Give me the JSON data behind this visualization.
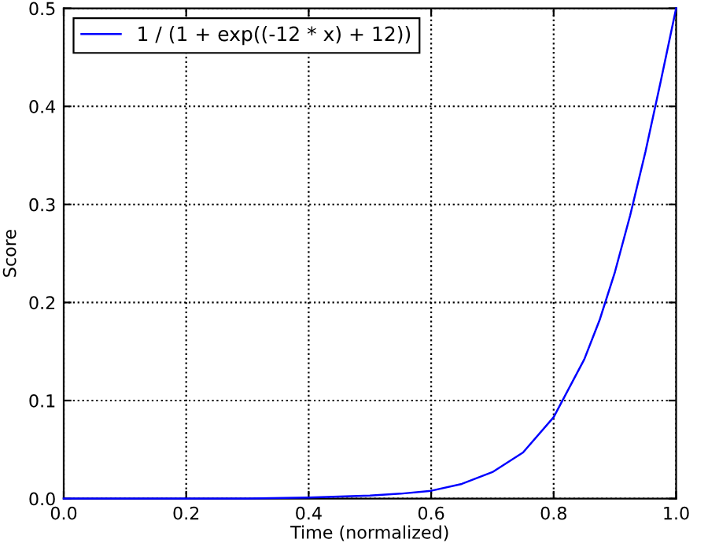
{
  "chart_data": {
    "type": "line",
    "xlabel": "Time (normalized)",
    "ylabel": "Score",
    "x": [
      0.0,
      0.1,
      0.2,
      0.3,
      0.4,
      0.5,
      0.55,
      0.6,
      0.65,
      0.7,
      0.75,
      0.8,
      0.85,
      0.875,
      0.9,
      0.925,
      0.95,
      0.975,
      1.0
    ],
    "series": [
      {
        "name": "1 / (1 + exp((-12 * x) + 12))",
        "color": "#0000ff",
        "values": [
          0.0,
          0.0,
          0.0,
          0.0,
          0.001,
          0.003,
          0.005,
          0.008,
          0.015,
          0.027,
          0.047,
          0.083,
          0.142,
          0.182,
          0.231,
          0.289,
          0.354,
          0.426,
          0.5
        ]
      }
    ],
    "xlim": [
      0.0,
      1.0
    ],
    "ylim": [
      0.0,
      0.5
    ],
    "xticks": [
      {
        "value": 0,
        "label": "0.0"
      },
      0.2,
      0.4,
      0.6,
      0.8,
      {
        "value": 1,
        "label": "1.0"
      }
    ],
    "yticks": [
      {
        "value": 0,
        "label": "0.0"
      },
      0.1,
      0.2,
      0.3,
      0.4,
      0.5
    ],
    "grid": true,
    "legend": "top left",
    "marker": "none",
    "line_style": "solid"
  }
}
